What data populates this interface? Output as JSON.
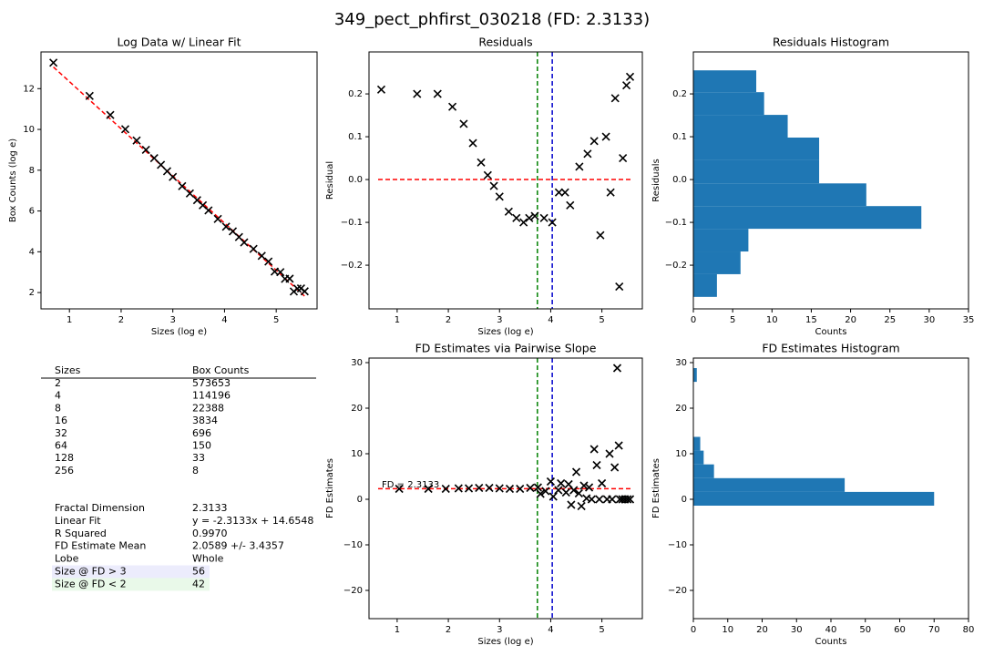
{
  "title": "349_pect_phfirst_030218 (FD: 2.3133)",
  "chart_data": [
    {
      "type": "scatter",
      "title": "Log Data w/ Linear Fit",
      "xlabel": "Sizes (log e)",
      "ylabel": "Box Counts (log e)",
      "color": "#000000",
      "x": [
        0.69,
        1.39,
        1.79,
        2.08,
        2.3,
        2.48,
        2.64,
        2.77,
        2.89,
        3.0,
        3.18,
        3.33,
        3.47,
        3.58,
        3.69,
        3.87,
        4.03,
        4.16,
        4.28,
        4.38,
        4.56,
        4.72,
        4.85,
        4.97,
        5.08,
        5.17,
        5.26,
        5.34,
        5.41,
        5.48,
        5.55
      ],
      "values": [
        13.27,
        11.64,
        10.71,
        10.01,
        9.46,
        9.0,
        8.59,
        8.26,
        7.95,
        7.67,
        7.22,
        6.86,
        6.53,
        6.28,
        6.03,
        5.61,
        5.23,
        5.0,
        4.72,
        4.46,
        4.14,
        3.8,
        3.52,
        3.03,
        3.0,
        2.67,
        2.68,
        2.05,
        2.19,
        2.2,
        2.06
      ],
      "fit": {
        "x": [
          0.69,
          5.55
        ],
        "values": [
          13.06,
          1.82
        ],
        "color": "#ff0000"
      },
      "xlim": [
        0.45,
        5.79
      ],
      "xticks": [
        1,
        2,
        3,
        4,
        5
      ],
      "ylim": [
        1.2,
        13.8
      ],
      "yticks": [
        2,
        4,
        6,
        8,
        10,
        12
      ]
    },
    {
      "type": "scatter",
      "title": "Residuals",
      "xlabel": "Sizes (log e)",
      "ylabel": "Residual",
      "color": "#000000",
      "x": [
        0.69,
        1.39,
        1.79,
        2.08,
        2.3,
        2.48,
        2.64,
        2.77,
        2.89,
        3.0,
        3.18,
        3.33,
        3.47,
        3.58,
        3.69,
        3.87,
        4.03,
        4.16,
        4.28,
        4.38,
        4.56,
        4.72,
        4.85,
        4.97,
        5.08,
        5.17,
        5.26,
        5.34,
        5.41,
        5.48,
        5.55
      ],
      "values": [
        0.21,
        0.2,
        0.2,
        0.17,
        0.13,
        0.085,
        0.04,
        0.01,
        -0.015,
        -0.04,
        -0.075,
        -0.09,
        -0.1,
        -0.09,
        -0.085,
        -0.09,
        -0.1,
        -0.03,
        -0.03,
        -0.06,
        0.03,
        0.06,
        0.09,
        -0.13,
        0.1,
        -0.03,
        0.19,
        -0.25,
        0.05,
        0.22,
        0.24
      ],
      "hline": {
        "value": 0,
        "color": "#ff0000"
      },
      "vlines": [
        {
          "value": 3.74,
          "color": "#008000"
        },
        {
          "value": 4.03,
          "color": "#0000cc"
        }
      ],
      "xlim": [
        0.45,
        5.79
      ],
      "xticks": [
        1,
        2,
        3,
        4,
        5
      ],
      "ylim": [
        -0.302,
        0.298
      ],
      "yticks": [
        {
          "value": -0.2,
          "label": "−0.2"
        },
        {
          "value": -0.1,
          "label": "−0.1"
        },
        {
          "value": 0,
          "label": "0.0"
        },
        0.1,
        0.2
      ]
    },
    {
      "type": "histogram",
      "orientation": "horizontal",
      "title": "Residuals Histogram",
      "xlabel": "Counts",
      "ylabel": "Residuals",
      "color": "#1f77b4",
      "bins": [
        -0.274,
        -0.221,
        -0.168,
        -0.115,
        -0.062,
        -0.009,
        0.045,
        0.098,
        0.151,
        0.204,
        0.255
      ],
      "values": [
        3,
        6,
        7,
        29,
        22,
        16,
        16,
        12,
        9,
        8
      ],
      "xlim": [
        0,
        35
      ],
      "xticks": [
        0,
        5,
        10,
        15,
        20,
        25,
        30,
        35
      ],
      "ylim": [
        -0.302,
        0.298
      ],
      "yticks": [
        {
          "value": -0.2,
          "label": "−0.2"
        },
        {
          "value": -0.1,
          "label": "−0.1"
        },
        {
          "value": 0,
          "label": "0.0"
        },
        0.1,
        0.2
      ]
    },
    {
      "type": "scatter",
      "title": "FD Estimates via Pairwise Slope",
      "xlabel": "Sizes (log e)",
      "ylabel": "FD Estimates",
      "color": "#000000",
      "x": [
        1.04,
        1.61,
        1.95,
        2.2,
        2.4,
        2.6,
        2.8,
        3.0,
        3.2,
        3.4,
        3.6,
        3.75,
        3.8,
        3.9,
        4.0,
        4.05,
        4.15,
        4.2,
        4.3,
        4.35,
        4.4,
        4.45,
        4.5,
        4.55,
        4.6,
        4.65,
        4.7,
        4.75,
        4.8,
        4.85,
        4.9,
        4.95,
        5.0,
        5.1,
        5.15,
        5.2,
        5.25,
        5.3,
        5.33,
        5.35,
        5.4,
        5.45,
        5.5,
        5.55
      ],
      "values": [
        2.3,
        2.3,
        2.3,
        2.4,
        2.4,
        2.5,
        2.5,
        2.4,
        2.3,
        2.3,
        2.5,
        2.6,
        1.2,
        1.8,
        3.9,
        0.6,
        2.0,
        3.5,
        1.5,
        3.3,
        -1.2,
        2.0,
        6.0,
        1.3,
        -1.5,
        3.0,
        0.2,
        2.6,
        0,
        11.0,
        7.5,
        0,
        3.5,
        0,
        10.0,
        0,
        7.0,
        28.8,
        11.8,
        0,
        0,
        0,
        0,
        0
      ],
      "hline": {
        "value": 2.3133,
        "color": "#ff0000"
      },
      "vlines": [
        {
          "value": 3.74,
          "color": "#008000"
        },
        {
          "value": 4.03,
          "color": "#0000cc"
        }
      ],
      "annotation": {
        "text": "FD = 2.3133",
        "x": 0.7,
        "y": 3.2
      },
      "xlim": [
        0.45,
        5.79
      ],
      "xticks": [
        1,
        2,
        3,
        4,
        5
      ],
      "ylim": [
        -26.2,
        31
      ],
      "yticks": [
        {
          "value": -20,
          "label": "−20"
        },
        {
          "value": -10,
          "label": "−10"
        },
        0,
        10,
        20,
        30
      ]
    },
    {
      "type": "histogram",
      "orientation": "horizontal",
      "title": "FD Estimates Histogram",
      "xlabel": "Counts",
      "ylabel": "FD Estimates",
      "color": "#1f77b4",
      "bins": [
        -1.4,
        1.62,
        4.64,
        7.66,
        10.68,
        13.7,
        16.72,
        19.74,
        22.76,
        25.78,
        28.8
      ],
      "values": [
        70,
        44,
        6,
        3,
        2,
        0,
        0,
        0,
        0,
        1
      ],
      "xlim": [
        0,
        80
      ],
      "xticks": [
        0,
        10,
        20,
        30,
        40,
        50,
        60,
        70,
        80
      ],
      "ylim": [
        -26.2,
        31
      ],
      "yticks": [
        {
          "value": -20,
          "label": "−20"
        },
        {
          "value": -10,
          "label": "−10"
        },
        0,
        10,
        20,
        30
      ]
    }
  ],
  "table": {
    "header": [
      "Sizes",
      "Box Counts"
    ],
    "rows": [
      [
        2,
        573653
      ],
      [
        4,
        114196
      ],
      [
        8,
        22388
      ],
      [
        16,
        3834
      ],
      [
        32,
        696
      ],
      [
        64,
        150
      ],
      [
        128,
        33
      ],
      [
        256,
        8
      ]
    ],
    "stats": [
      {
        "label": "Fractal Dimension",
        "value": "2.3133"
      },
      {
        "label": "Linear Fit",
        "value": "y = -2.3133x + 14.6548"
      },
      {
        "label": "R Squared",
        "value": "0.9970"
      },
      {
        "label": "FD Estimate Mean",
        "value": "2.0589 +/- 3.4357"
      },
      {
        "label": "Lobe",
        "value": "Whole"
      },
      {
        "label": "Size @ FD > 3",
        "value": "56",
        "color": "#0000cc",
        "background": "#ececfc"
      },
      {
        "label": "Size @ FD < 2",
        "value": "42",
        "color": "#008000",
        "background": "#e9f9e9"
      }
    ]
  }
}
